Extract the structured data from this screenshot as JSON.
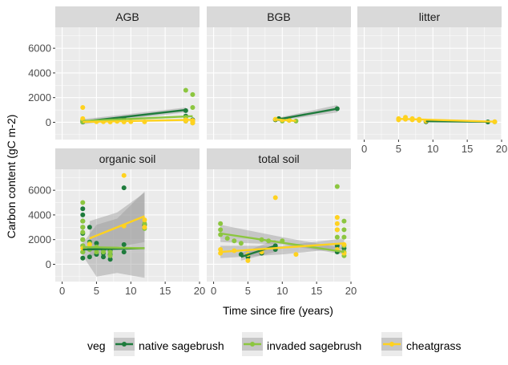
{
  "chart_data": {
    "type": "scatter",
    "xlabel": "Time since fire (years)",
    "ylabel": "Carbon content (gC m-2)",
    "xlim": [
      -1,
      20
    ],
    "ylim": [
      -1400,
      7700
    ],
    "x_ticks": [
      0,
      5,
      10,
      15,
      20
    ],
    "y_ticks": [
      0,
      2000,
      4000,
      6000
    ],
    "grid": true,
    "legend": {
      "title": "veg",
      "placement": "bottom",
      "entries": [
        "native sagebrush",
        "invaded sagebrush",
        "cheatgrass"
      ]
    },
    "colors": {
      "native sagebrush": "#1e7b3c",
      "invaded sagebrush": "#8cc63f",
      "cheatgrass": "#ffd21f",
      "panel_bg": "#ebebeb",
      "strip_bg": "#d9d9d9",
      "grid": "#ffffff",
      "ribbon": "#999999"
    },
    "panels": [
      {
        "name": "AGB",
        "points": {
          "native sagebrush": [
            [
              3,
              50
            ],
            [
              3,
              150
            ],
            [
              9,
              300
            ],
            [
              18,
              950
            ],
            [
              18,
              500
            ],
            [
              19,
              200
            ],
            [
              3,
              20
            ],
            [
              18,
              100
            ]
          ],
          "invaded sagebrush": [
            [
              3,
              50
            ],
            [
              3,
              200
            ],
            [
              18,
              2600
            ],
            [
              19,
              2250
            ],
            [
              19,
              1200
            ],
            [
              18,
              400
            ],
            [
              19,
              50
            ],
            [
              19,
              -50
            ]
          ],
          "cheatgrass": [
            [
              3,
              1200
            ],
            [
              3,
              300
            ],
            [
              5,
              50
            ],
            [
              6,
              50
            ],
            [
              7,
              30
            ],
            [
              8,
              80
            ],
            [
              9,
              30
            ],
            [
              10,
              50
            ],
            [
              12,
              40
            ],
            [
              18,
              200
            ],
            [
              18,
              100
            ],
            [
              19,
              150
            ],
            [
              19,
              50
            ],
            [
              19,
              -50
            ]
          ]
        },
        "fits": {
          "native sagebrush": [
            [
              3,
              50
            ],
            [
              18,
              1000
            ]
          ],
          "invaded sagebrush": [
            [
              3,
              100
            ],
            [
              19,
              500
            ]
          ],
          "cheatgrass": [
            [
              3,
              30
            ],
            [
              19,
              200
            ]
          ]
        },
        "ribbons": {
          "native sagebrush": [
            [
              3,
              -150,
              250
            ],
            [
              18,
              800,
              1200
            ]
          ]
        }
      },
      {
        "name": "BGB",
        "points": {
          "native sagebrush": [
            [
              9,
              200
            ],
            [
              9.5,
              300
            ],
            [
              18,
              1100
            ]
          ],
          "invaded sagebrush": [
            [
              10,
              100
            ],
            [
              11,
              200
            ],
            [
              12,
              100
            ]
          ],
          "cheatgrass": [
            [
              9,
              250
            ],
            [
              10,
              200
            ],
            [
              11,
              150
            ]
          ]
        },
        "fits": {
          "native sagebrush": [
            [
              9,
              200
            ],
            [
              18,
              1100
            ]
          ],
          "invaded sagebrush": [
            [
              9,
              250
            ],
            [
              12,
              100
            ]
          ],
          "cheatgrass": [
            [
              9,
              220
            ],
            [
              12,
              120
            ]
          ]
        },
        "ribbons": {
          "native sagebrush": [
            [
              9,
              100,
              320
            ],
            [
              18,
              800,
              1400
            ]
          ]
        }
      },
      {
        "name": "litter",
        "points": {
          "native sagebrush": [
            [
              9,
              50
            ],
            [
              18,
              30
            ]
          ],
          "invaded sagebrush": [
            [
              19,
              40
            ]
          ],
          "cheatgrass": [
            [
              5,
              200
            ],
            [
              5,
              300
            ],
            [
              6,
              400
            ],
            [
              6,
              250
            ],
            [
              7,
              300
            ],
            [
              7,
              200
            ],
            [
              8,
              250
            ],
            [
              8,
              150
            ],
            [
              9,
              100
            ],
            [
              19,
              50
            ]
          ]
        },
        "fits": {
          "native sagebrush": [
            [
              9,
              80
            ],
            [
              18,
              40
            ]
          ],
          "cheatgrass": [
            [
              5,
              280
            ],
            [
              19,
              50
            ]
          ]
        },
        "ribbons": {}
      },
      {
        "name": "organic soil",
        "points": {
          "native sagebrush": [
            [
              3,
              500
            ],
            [
              3,
              1000
            ],
            [
              3,
              1500
            ],
            [
              3,
              2000
            ],
            [
              3,
              2500
            ],
            [
              3,
              3000
            ],
            [
              3,
              3500
            ],
            [
              3,
              4000
            ],
            [
              3,
              4500
            ],
            [
              4,
              600
            ],
            [
              4,
              1200
            ],
            [
              4,
              1800
            ],
            [
              4,
              3000
            ],
            [
              5,
              800
            ],
            [
              5,
              1300
            ],
            [
              5,
              1700
            ],
            [
              6,
              600
            ],
            [
              6,
              900
            ],
            [
              6,
              1200
            ],
            [
              7,
              400
            ],
            [
              7,
              800
            ],
            [
              7,
              1100
            ],
            [
              9,
              6200
            ],
            [
              9,
              1600
            ],
            [
              9,
              1000
            ],
            [
              12,
              3200
            ]
          ],
          "invaded sagebrush": [
            [
              3,
              1000
            ],
            [
              3,
              1500
            ],
            [
              3,
              2000
            ],
            [
              3,
              2600
            ],
            [
              3,
              3000
            ],
            [
              3,
              3500
            ],
            [
              3,
              5000
            ],
            [
              4,
              1200
            ],
            [
              4,
              1700
            ],
            [
              5,
              1000
            ],
            [
              5,
              1400
            ],
            [
              6,
              1000
            ],
            [
              7,
              1000
            ],
            [
              7,
              700
            ],
            [
              12,
              3300
            ],
            [
              12,
              2900
            ]
          ],
          "cheatgrass": [
            [
              3,
              1300
            ],
            [
              4,
              1600
            ],
            [
              9,
              7200
            ],
            [
              9,
              3100
            ],
            [
              12,
              3000
            ],
            [
              12,
              3600
            ]
          ]
        },
        "fits": {
          "native sagebrush": [
            [
              3,
              1200
            ],
            [
              12,
              1300
            ]
          ],
          "invaded sagebrush": [
            [
              3,
              1400
            ],
            [
              12,
              1300
            ]
          ],
          "cheatgrass": [
            [
              4,
              2100
            ],
            [
              12,
              3900
            ]
          ]
        },
        "ribbons": {
          "native sagebrush": [
            [
              3,
              700,
              1700
            ],
            [
              5,
              -1000,
              3200
            ],
            [
              8,
              -700,
              3700
            ],
            [
              12,
              -1100,
              5900
            ]
          ],
          "cheatgrass": [
            [
              4,
              600,
              3500
            ],
            [
              8,
              1400,
              4200
            ],
            [
              12,
              1800,
              5800
            ]
          ]
        }
      },
      {
        "name": "total soil",
        "points": {
          "native sagebrush": [
            [
              4,
              800
            ],
            [
              5,
              600
            ],
            [
              7,
              900
            ],
            [
              9,
              1500
            ],
            [
              9,
              1200
            ],
            [
              18,
              1500
            ],
            [
              18,
              1000
            ],
            [
              19,
              1300
            ]
          ],
          "invaded sagebrush": [
            [
              1,
              3300
            ],
            [
              1,
              2800
            ],
            [
              1,
              2400
            ],
            [
              2,
              2100
            ],
            [
              3,
              1900
            ],
            [
              4,
              1700
            ],
            [
              7,
              2000
            ],
            [
              8,
              1900
            ],
            [
              10,
              1900
            ],
            [
              18,
              6300
            ],
            [
              18,
              2800
            ],
            [
              18,
              2200
            ],
            [
              19,
              3500
            ],
            [
              19,
              2800
            ],
            [
              19,
              2200
            ],
            [
              19,
              1500
            ],
            [
              19,
              1000
            ],
            [
              19,
              700
            ]
          ],
          "cheatgrass": [
            [
              1,
              1200
            ],
            [
              1,
              900
            ],
            [
              3,
              1100
            ],
            [
              5,
              300
            ],
            [
              5,
              800
            ],
            [
              7,
              1000
            ],
            [
              9,
              5400
            ],
            [
              12,
              800
            ],
            [
              18,
              3800
            ],
            [
              18,
              3300
            ],
            [
              18,
              2800
            ],
            [
              18,
              1200
            ],
            [
              19,
              1600
            ],
            [
              19,
              900
            ]
          ]
        },
        "fits": {
          "native sagebrush": [
            [
              4,
              600
            ],
            [
              9,
              1500
            ]
          ],
          "invaded sagebrush": [
            [
              1,
              2500
            ],
            [
              19,
              1000
            ]
          ],
          "cheatgrass": [
            [
              1,
              1000
            ],
            [
              19,
              1700
            ]
          ]
        },
        "ribbons": {
          "native sagebrush": [
            [
              4,
              300,
              900
            ],
            [
              9,
              1000,
              2000
            ]
          ],
          "invaded sagebrush": [
            [
              1,
              1800,
              3200
            ],
            [
              10,
              1600,
              2200
            ],
            [
              19,
              800,
              1300
            ]
          ],
          "cheatgrass": [
            [
              1,
              500,
              1500
            ],
            [
              10,
              800,
              1500
            ],
            [
              19,
              1300,
              2100
            ]
          ]
        }
      }
    ]
  }
}
